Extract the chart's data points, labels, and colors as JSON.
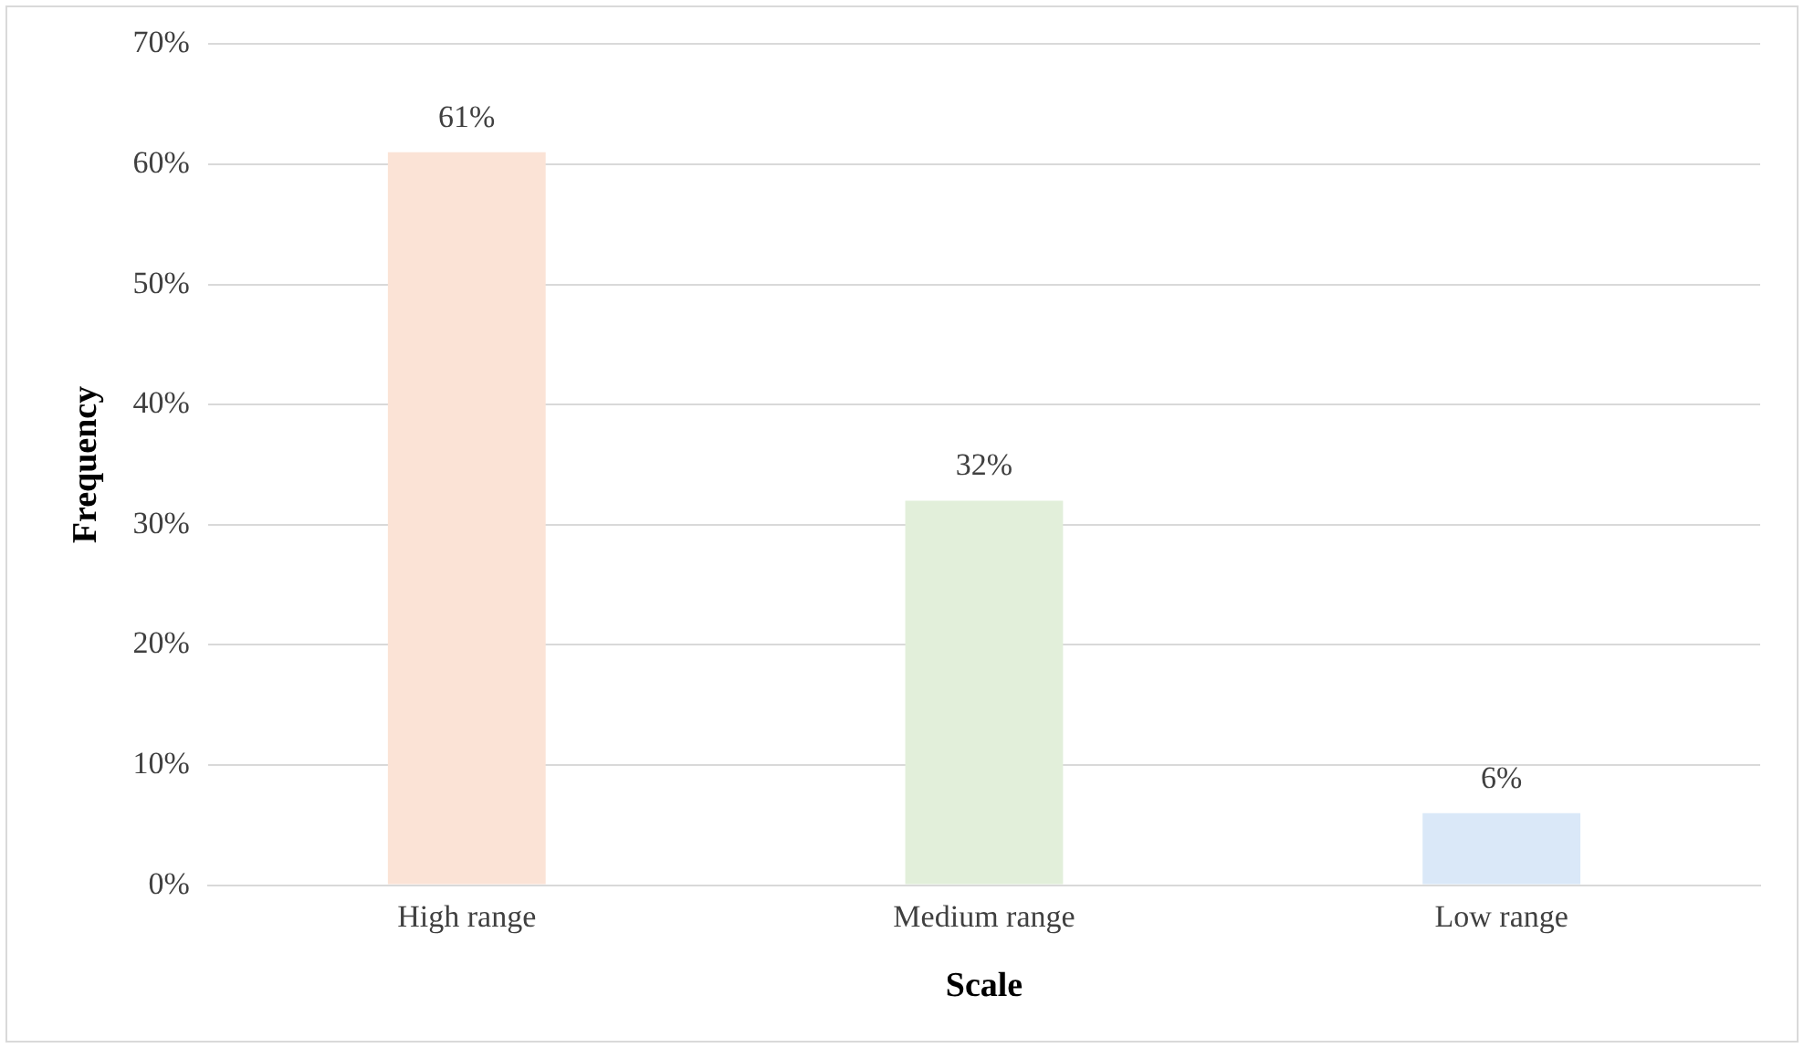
{
  "chart_data": {
    "type": "bar",
    "xlabel": "Scale",
    "ylabel": "Frequency",
    "categories": [
      "High range",
      "Medium range",
      "Low range"
    ],
    "values": [
      61,
      32,
      6
    ],
    "colors": [
      "#fbe3d6",
      "#e2efda",
      "#dae8f8"
    ],
    "value_labels": [
      "61%",
      "32%",
      "6%"
    ],
    "ylim": [
      0,
      70
    ],
    "yticks": [
      {
        "value": 0,
        "label": "0%"
      },
      {
        "value": 10,
        "label": "10%"
      },
      {
        "value": 20,
        "label": "20%"
      },
      {
        "value": 30,
        "label": "30%"
      },
      {
        "value": 40,
        "label": "40%"
      },
      {
        "value": 50,
        "label": "50%"
      },
      {
        "value": 60,
        "label": "60%"
      },
      {
        "value": 70,
        "label": "70%"
      }
    ],
    "grid": "y"
  }
}
